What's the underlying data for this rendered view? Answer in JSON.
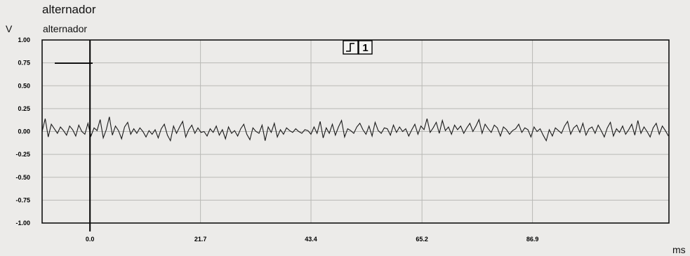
{
  "header": {
    "title": "alternador",
    "y_unit": "V",
    "channel_name": "alternador",
    "x_unit": "ms"
  },
  "trigger": {
    "icon": "rising-edge-trigger-icon",
    "channel": "1"
  },
  "cursor": {
    "position_ms": 0.0,
    "label": "▬▬▬▬▬▬▬▬▬"
  },
  "colors": {
    "background": "#ecebe9",
    "frame": "#111111",
    "grid": "#b9b9b6",
    "trace": "#1a1a1a"
  },
  "chart_data": {
    "type": "line",
    "title": "alternador",
    "xlabel": "ms",
    "ylabel": "V",
    "xlim": [
      -9.4,
      113.7
    ],
    "ylim": [
      -1.0,
      1.0
    ],
    "y_ticks": [
      "1.00",
      "0.75",
      "0.50",
      "0.25",
      "0.00",
      "-0.25",
      "-0.50",
      "-0.75",
      "-1.00"
    ],
    "y_tick_values": [
      1.0,
      0.75,
      0.5,
      0.25,
      0.0,
      -0.25,
      -0.5,
      -0.75,
      -1.0
    ],
    "x_ticks": [
      "0.0",
      "21.7",
      "43.4",
      "65.2",
      "86.9"
    ],
    "x_tick_values": [
      0.0,
      21.7,
      43.4,
      65.2,
      86.9
    ],
    "grid": true,
    "series": [
      {
        "x": [
          -9.4,
          -8.8,
          -8.2,
          -7.6,
          -7.0,
          -6.4,
          -5.8,
          -5.2,
          -4.6,
          -4.0,
          -3.4,
          -2.8,
          -2.2,
          -1.6,
          -1.0,
          -0.4,
          0.2,
          0.8,
          1.4,
          2.0,
          2.6,
          3.2,
          3.8,
          4.4,
          5.0,
          5.6,
          6.2,
          6.8,
          7.4,
          8.0,
          8.6,
          9.2,
          9.8,
          10.4,
          11.0,
          11.6,
          12.2,
          12.8,
          13.4,
          14.0,
          14.6,
          15.2,
          15.8,
          16.4,
          17.0,
          17.6,
          18.2,
          18.8,
          19.4,
          20.0,
          20.6,
          21.2,
          21.8,
          22.4,
          23.0,
          23.6,
          24.2,
          24.8,
          25.4,
          26.0,
          26.6,
          27.2,
          27.8,
          28.4,
          29.0,
          29.6,
          30.2,
          30.8,
          31.4,
          32.0,
          32.6,
          33.2,
          33.8,
          34.4,
          35.0,
          35.6,
          36.2,
          36.8,
          37.4,
          38.0,
          38.6,
          39.2,
          39.8,
          40.4,
          41.0,
          41.6,
          42.2,
          42.8,
          43.4,
          44.0,
          44.6,
          45.2,
          45.8,
          46.4,
          47.0,
          47.6,
          48.2,
          48.8,
          49.4,
          50.0,
          50.6,
          51.2,
          51.8,
          52.4,
          53.0,
          53.6,
          54.2,
          54.8,
          55.4,
          56.0,
          56.6,
          57.2,
          57.8,
          58.4,
          59.0,
          59.6,
          60.2,
          60.8,
          61.4,
          62.0,
          62.6,
          63.2,
          63.8,
          64.4,
          65.0,
          65.6,
          66.2,
          66.8,
          67.4,
          68.0,
          68.6,
          69.2,
          69.8,
          70.4,
          71.0,
          71.6,
          72.2,
          72.8,
          73.4,
          74.0,
          74.6,
          75.2,
          75.8,
          76.4,
          77.0,
          77.6,
          78.2,
          78.8,
          79.4,
          80.0,
          80.6,
          81.2,
          81.8,
          82.4,
          83.0,
          83.6,
          84.2,
          84.8,
          85.4,
          86.0,
          86.6,
          87.2,
          87.8,
          88.4,
          89.0,
          89.6,
          90.2,
          90.8,
          91.4,
          92.0,
          92.6,
          93.2,
          93.8,
          94.4,
          95.0,
          95.6,
          96.2,
          96.8,
          97.4,
          98.0,
          98.6,
          99.2,
          99.8,
          100.4,
          101.0,
          101.6,
          102.2,
          102.8,
          103.4,
          104.0,
          104.6,
          105.2,
          105.8,
          106.4,
          107.0,
          107.6,
          108.2,
          108.8,
          109.4,
          110.0,
          110.6,
          111.2,
          111.8,
          112.4,
          113.0,
          113.6
        ],
        "y": [
          0.0,
          0.14,
          -0.06,
          0.08,
          0.03,
          -0.02,
          0.05,
          0.01,
          -0.04,
          0.06,
          0.02,
          -0.05,
          0.07,
          0.0,
          -0.03,
          0.09,
          -0.05,
          0.04,
          0.01,
          0.13,
          -0.07,
          0.02,
          0.16,
          -0.04,
          0.06,
          0.01,
          -0.08,
          0.05,
          0.1,
          -0.03,
          0.03,
          -0.02,
          0.04,
          0.0,
          -0.06,
          0.01,
          -0.03,
          0.02,
          -0.07,
          0.03,
          0.08,
          -0.04,
          -0.1,
          0.06,
          -0.02,
          0.05,
          0.11,
          -0.06,
          0.02,
          0.07,
          -0.02,
          0.04,
          -0.01,
          0.0,
          -0.05,
          0.03,
          -0.01,
          0.06,
          -0.04,
          0.02,
          -0.08,
          0.05,
          -0.02,
          0.01,
          -0.05,
          0.03,
          0.08,
          -0.03,
          -0.09,
          0.04,
          0.0,
          -0.02,
          0.07,
          -0.1,
          0.05,
          -0.01,
          0.09,
          -0.06,
          0.02,
          -0.03,
          0.04,
          0.01,
          -0.01,
          0.03,
          0.0,
          -0.02,
          0.02,
          0.01,
          -0.03,
          0.05,
          -0.02,
          0.11,
          -0.07,
          0.04,
          -0.02,
          0.08,
          -0.04,
          0.05,
          0.12,
          -0.06,
          0.03,
          0.01,
          -0.02,
          0.05,
          0.09,
          0.02,
          -0.03,
          0.06,
          -0.05,
          0.1,
          0.01,
          -0.02,
          0.04,
          0.03,
          -0.04,
          0.07,
          -0.01,
          0.05,
          0.0,
          0.03,
          -0.05,
          0.02,
          0.08,
          -0.03,
          0.06,
          0.02,
          0.14,
          -0.01,
          0.04,
          0.1,
          -0.02,
          0.12,
          0.01,
          0.05,
          -0.03,
          0.07,
          0.02,
          0.06,
          -0.02,
          0.04,
          0.09,
          0.0,
          0.06,
          0.13,
          -0.02,
          0.08,
          0.03,
          -0.01,
          0.07,
          0.04,
          -0.05,
          0.05,
          0.02,
          -0.03,
          0.01,
          0.03,
          0.08,
          -0.01,
          0.04,
          0.02,
          -0.06,
          0.05,
          0.0,
          0.03,
          -0.04,
          -0.1,
          0.02,
          -0.05,
          0.04,
          0.01,
          -0.02,
          0.06,
          0.11,
          -0.03,
          0.04,
          0.07,
          -0.01,
          0.09,
          -0.04,
          0.03,
          0.05,
          -0.02,
          0.07,
          0.01,
          -0.06,
          0.04,
          0.1,
          -0.05,
          0.03,
          -0.01,
          0.06,
          -0.03,
          0.02,
          0.08,
          -0.04,
          0.12,
          -0.02,
          0.05,
          0.0,
          -0.06,
          0.04,
          0.09,
          -0.03,
          0.06,
          0.01,
          -0.05
        ]
      }
    ]
  }
}
